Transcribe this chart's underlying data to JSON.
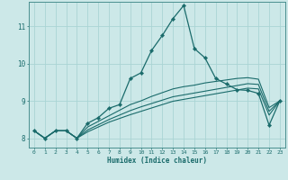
{
  "title": "",
  "xlabel": "Humidex (Indice chaleur)",
  "bg_color": "#cce8e8",
  "line_color": "#1a6b6b",
  "grid_color": "#aad4d4",
  "spine_color": "#4a9090",
  "xlim": [
    -0.5,
    23.5
  ],
  "ylim": [
    7.75,
    11.65
  ],
  "xticks": [
    0,
    1,
    2,
    3,
    4,
    5,
    6,
    7,
    8,
    9,
    10,
    11,
    12,
    13,
    14,
    15,
    16,
    17,
    18,
    19,
    20,
    21,
    22,
    23
  ],
  "yticks": [
    8,
    9,
    10,
    11
  ],
  "series": [
    [
      8.2,
      8.0,
      8.2,
      8.2,
      8.0,
      8.4,
      8.55,
      8.8,
      8.9,
      9.6,
      9.75,
      10.35,
      10.75,
      11.2,
      11.55,
      10.4,
      10.15,
      9.6,
      9.45,
      9.3,
      9.28,
      9.2,
      8.35,
      9.0
    ],
    [
      8.2,
      8.0,
      8.2,
      8.2,
      8.0,
      8.3,
      8.45,
      8.6,
      8.75,
      8.9,
      9.0,
      9.12,
      9.22,
      9.32,
      9.38,
      9.42,
      9.48,
      9.52,
      9.56,
      9.6,
      9.62,
      9.58,
      8.82,
      9.0
    ],
    [
      8.2,
      8.0,
      8.2,
      8.2,
      8.0,
      8.22,
      8.36,
      8.5,
      8.62,
      8.74,
      8.84,
      8.93,
      9.02,
      9.11,
      9.16,
      9.21,
      9.26,
      9.31,
      9.36,
      9.41,
      9.46,
      9.44,
      8.72,
      9.0
    ],
    [
      8.2,
      8.0,
      8.2,
      8.2,
      8.0,
      8.17,
      8.3,
      8.43,
      8.53,
      8.63,
      8.72,
      8.81,
      8.9,
      8.99,
      9.04,
      9.09,
      9.14,
      9.19,
      9.24,
      9.29,
      9.34,
      9.32,
      8.62,
      9.0
    ]
  ]
}
